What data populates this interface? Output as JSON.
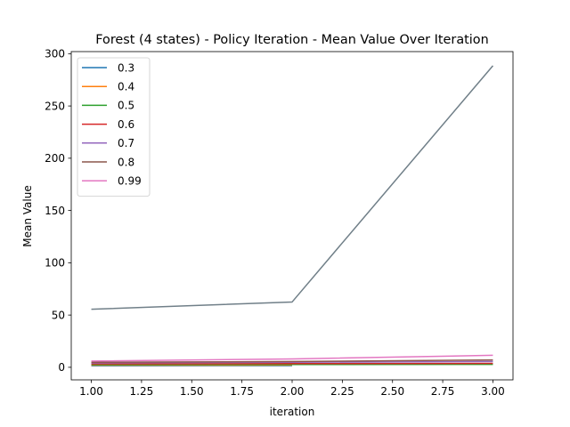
{
  "chart_data": {
    "type": "line",
    "title": "Forest (4 states) - Policy Iteration - Mean Value Over Iteration",
    "xlabel": "iteration",
    "ylabel": "Mean Value",
    "xlim": [
      0.9,
      3.1
    ],
    "ylim": [
      -12,
      302
    ],
    "xticks": [
      1.0,
      1.25,
      1.5,
      1.75,
      2.0,
      2.25,
      2.5,
      2.75,
      3.0
    ],
    "xtick_labels": [
      "1.00",
      "1.25",
      "1.50",
      "1.75",
      "2.00",
      "2.25",
      "2.50",
      "2.75",
      "3.00"
    ],
    "yticks": [
      0,
      50,
      100,
      150,
      200,
      250,
      300
    ],
    "ytick_labels": [
      "0",
      "50",
      "100",
      "150",
      "200",
      "250",
      "300"
    ],
    "grid": false,
    "legend_position": "top-left",
    "series": [
      {
        "name": "0.3",
        "color": "#1f77b4",
        "x": [
          1,
          2
        ],
        "y": [
          1.5,
          1.6
        ]
      },
      {
        "name": "0.4",
        "color": "#ff7f0e",
        "x": [
          1,
          2
        ],
        "y": [
          2.0,
          2.1
        ]
      },
      {
        "name": "0.5",
        "color": "#2ca02c",
        "x": [
          1,
          2,
          3
        ],
        "y": [
          2.6,
          2.7,
          2.8
        ]
      },
      {
        "name": "0.6",
        "color": "#d62728",
        "x": [
          1,
          2,
          3
        ],
        "y": [
          3.3,
          3.5,
          3.7
        ]
      },
      {
        "name": "0.7",
        "color": "#9467bd",
        "x": [
          1,
          2,
          3
        ],
        "y": [
          4.2,
          4.8,
          5.5
        ]
      },
      {
        "name": "0.8",
        "color": "#8c564b",
        "x": [
          1,
          2,
          3
        ],
        "y": [
          4.8,
          5.5,
          7.0
        ]
      },
      {
        "name": "0.99",
        "color": "#e377c2",
        "x": [
          1,
          2,
          3
        ],
        "y": [
          6.0,
          8.0,
          11.5
        ]
      },
      {
        "name": "",
        "color": "#707f88",
        "x": [
          1,
          2,
          3
        ],
        "y": [
          55.5,
          62.5,
          288.5
        ]
      }
    ]
  }
}
